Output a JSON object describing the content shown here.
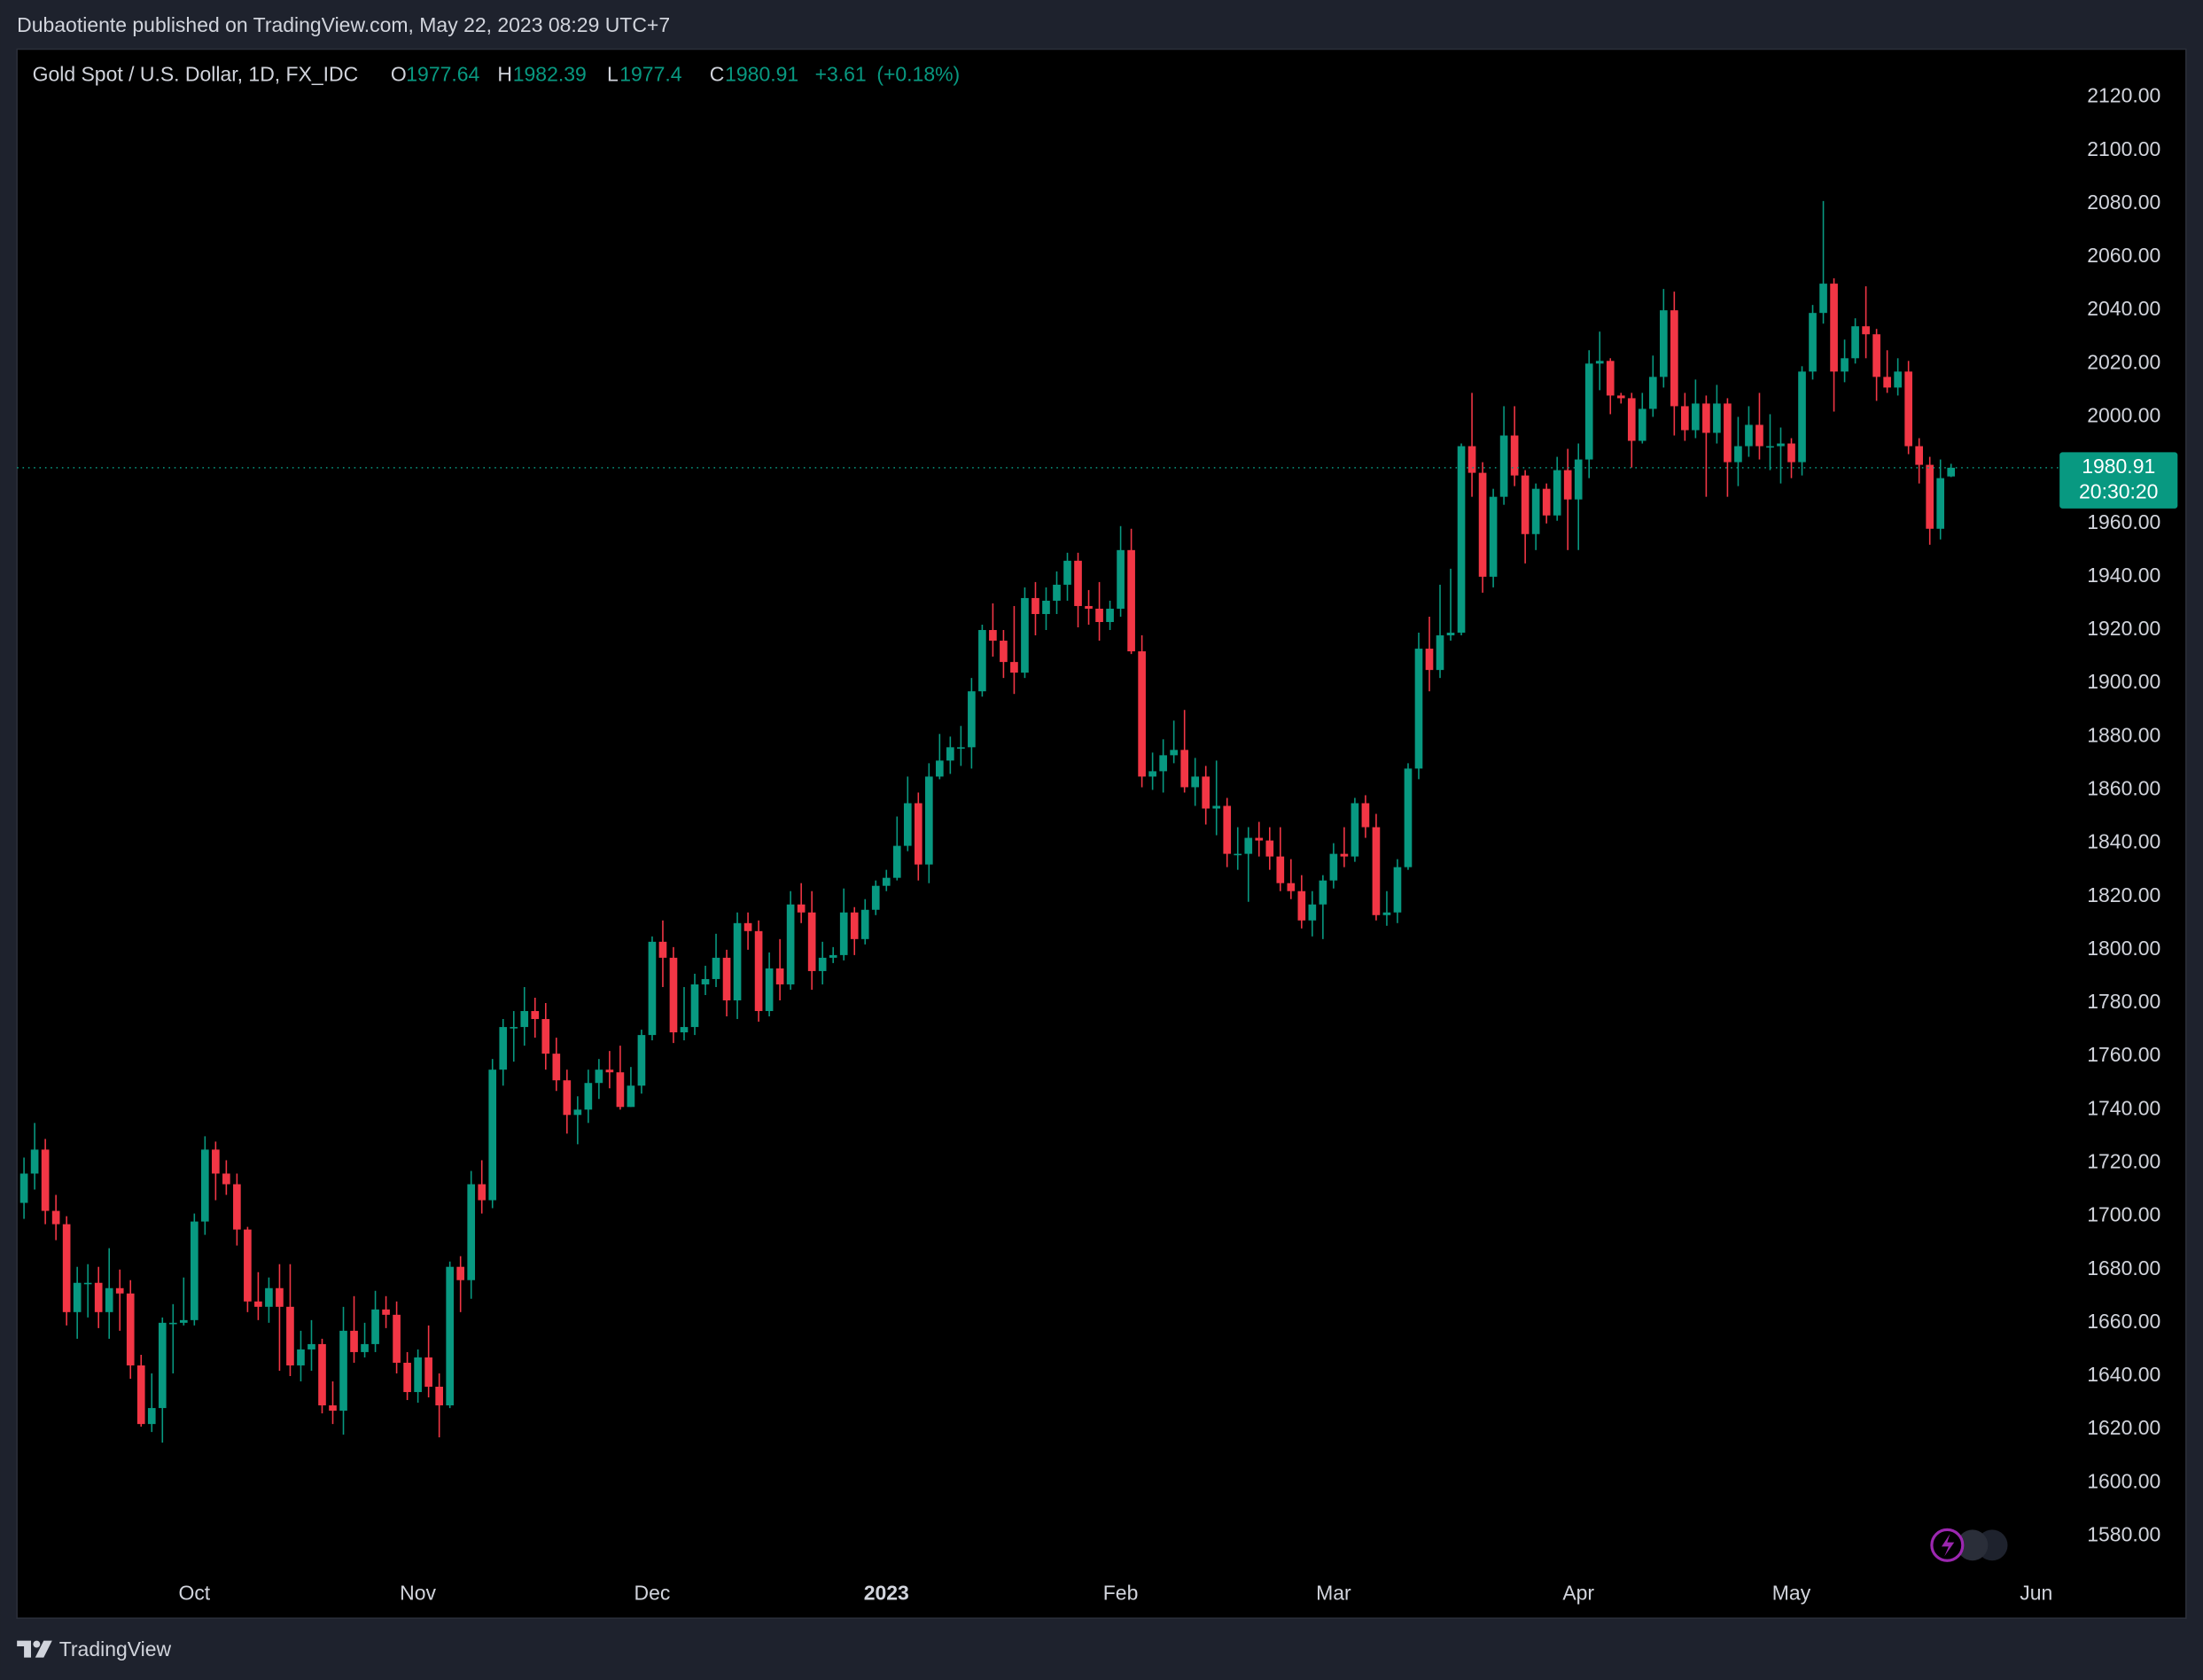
{
  "header": {
    "published": "Dubaotiente published on TradingView.com, May 22, 2023 08:29 UTC+7"
  },
  "footer": {
    "brand": "TradingView"
  },
  "chart_data": {
    "type": "candlestick",
    "title": "Gold Spot / U.S. Dollar, 1D, FX_IDC",
    "ohlc_prefixes": [
      "O",
      "H",
      "L",
      "C"
    ],
    "change": "+3.61",
    "change_pct": "(+0.18%)",
    "countdown": "20:30:20",
    "up_color": "#089981",
    "down_color": "#f23645",
    "grid": false,
    "xlim": [
      -0.66,
      190.4
    ],
    "xticks": [
      {
        "value": 16,
        "label": "Oct"
      },
      {
        "value": 37,
        "label": "Nov"
      },
      {
        "value": 59,
        "label": "Dec"
      },
      {
        "value": 81,
        "label": "2023"
      },
      {
        "value": 103,
        "label": "Feb"
      },
      {
        "value": 123,
        "label": "Mar"
      },
      {
        "value": 146,
        "label": "Apr"
      },
      {
        "value": 166,
        "label": "May"
      },
      {
        "value": 189,
        "label": "Jun"
      }
    ],
    "ylim": [
      1566,
      2138
    ],
    "yticks": [
      {
        "value": 1580,
        "label": "1580.00"
      },
      {
        "value": 1600,
        "label": "1600.00"
      },
      {
        "value": 1620,
        "label": "1620.00"
      },
      {
        "value": 1640,
        "label": "1640.00"
      },
      {
        "value": 1660,
        "label": "1660.00"
      },
      {
        "value": 1680,
        "label": "1680.00"
      },
      {
        "value": 1700,
        "label": "1700.00"
      },
      {
        "value": 1720,
        "label": "1720.00"
      },
      {
        "value": 1740,
        "label": "1740.00"
      },
      {
        "value": 1760,
        "label": "1760.00"
      },
      {
        "value": 1780,
        "label": "1780.00"
      },
      {
        "value": 1800,
        "label": "1800.00"
      },
      {
        "value": 1820,
        "label": "1820.00"
      },
      {
        "value": 1840,
        "label": "1840.00"
      },
      {
        "value": 1860,
        "label": "1860.00"
      },
      {
        "value": 1880,
        "label": "1880.00"
      },
      {
        "value": 1900,
        "label": "1900.00"
      },
      {
        "value": 1920,
        "label": "1920.00"
      },
      {
        "value": 1940,
        "label": "1940.00"
      },
      {
        "value": 1960,
        "label": "1960.00"
      },
      {
        "value": 1980,
        "label": "1980.00"
      },
      {
        "value": 2000,
        "label": "2000.00"
      },
      {
        "value": 2020,
        "label": "2020.00"
      },
      {
        "value": 2040,
        "label": "2040.00"
      },
      {
        "value": 2060,
        "label": "2060.00"
      },
      {
        "value": 2080,
        "label": "2080.00"
      },
      {
        "value": 2100,
        "label": "2100.00"
      },
      {
        "value": 2120,
        "label": "2120.00"
      }
    ],
    "open": [
      1705,
      1716,
      1725,
      1702,
      1697,
      1664,
      1675,
      1675,
      1664,
      1673,
      1671,
      1644,
      1622,
      1628,
      1660,
      1660,
      1661,
      1698,
      1725,
      1716,
      1712,
      1695,
      1668,
      1666,
      1673,
      1666,
      1644,
      1650,
      1652,
      1629,
      1627,
      1657,
      1649,
      1652,
      1665,
      1663,
      1645,
      1634,
      1647,
      1636,
      1629,
      1681,
      1676,
      1712,
      1706,
      1755,
      1771,
      1771,
      1777,
      1774,
      1761,
      1751,
      1738,
      1740,
      1750,
      1755,
      1754,
      1741,
      1749,
      1768,
      1803,
      1797,
      1769,
      1771,
      1787,
      1789,
      1797,
      1781,
      1810,
      1807,
      1777,
      1793,
      1787,
      1817,
      1814,
      1792,
      1797,
      1798,
      1814,
      1804,
      1815,
      1824,
      1827,
      1839,
      1855,
      1832,
      1865,
      1871,
      1876,
      1876,
      1897,
      1920,
      1916,
      1908,
      1904,
      1932,
      1926,
      1931,
      1937,
      1946,
      1929,
      1928,
      1923,
      1928,
      1950,
      1912,
      1865,
      1867,
      1873,
      1875,
      1861,
      1865,
      1853,
      1854,
      1836,
      1836,
      1842,
      1841,
      1835,
      1825,
      1822,
      1811,
      1817,
      1826,
      1836,
      1835,
      1855,
      1846,
      1813,
      1814,
      1831,
      1868,
      1913,
      1905,
      1918,
      1919,
      1989,
      1979,
      1940,
      1970,
      1993,
      1978,
      1956,
      1973,
      1963,
      1980,
      1969,
      1984,
      2020,
      2021,
      2008,
      2007,
      1991,
      2003,
      2015,
      2040,
      2004,
      1995,
      2005,
      1994,
      2005,
      1983,
      1989,
      1997,
      1989,
      1989,
      1990,
      1983,
      2017,
      2039,
      2050,
      2017,
      2022,
      2034,
      2031,
      2015,
      2011,
      2017,
      1989,
      1982,
      1958,
      1977.64
    ],
    "high": [
      1722,
      1735,
      1729,
      1708,
      1700,
      1681,
      1682,
      1681,
      1688,
      1680,
      1676,
      1648,
      1641,
      1662,
      1667,
      1677,
      1701,
      1730,
      1728,
      1721,
      1716,
      1696,
      1679,
      1677,
      1682,
      1682,
      1657,
      1661,
      1654,
      1638,
      1666,
      1670,
      1660,
      1672,
      1670,
      1668,
      1649,
      1650,
      1659,
      1641,
      1683,
      1685,
      1717,
      1721,
      1759,
      1774,
      1777,
      1786,
      1782,
      1780,
      1767,
      1755,
      1745,
      1755,
      1759,
      1762,
      1764,
      1756,
      1770,
      1805,
      1811,
      1801,
      1786,
      1791,
      1794,
      1806,
      1800,
      1814,
      1814,
      1811,
      1799,
      1804,
      1822,
      1825,
      1822,
      1803,
      1801,
      1823,
      1816,
      1819,
      1826,
      1830,
      1850,
      1865,
      1859,
      1870,
      1881,
      1880,
      1884,
      1902,
      1922,
      1930,
      1920,
      1929,
      1936,
      1938,
      1936,
      1942,
      1949,
      1949,
      1935,
      1938,
      1931,
      1959,
      1958,
      1918,
      1874,
      1879,
      1886,
      1890,
      1872,
      1869,
      1871,
      1857,
      1846,
      1846,
      1848,
      1846,
      1846,
      1834,
      1828,
      1822,
      1828,
      1840,
      1846,
      1857,
      1858,
      1851,
      1822,
      1834,
      1870,
      1919,
      1925,
      1937,
      1943,
      1990,
      2009,
      1983,
      1973,
      2004,
      2004,
      1980,
      1975,
      1975,
      1985,
      1988,
      1990,
      2025,
      2032,
      2022,
      2009,
      2009,
      2009,
      2023,
      2048,
      2047,
      2009,
      2014,
      2008,
      2012,
      2007,
      2000,
      2004,
      2009,
      2001,
      1996,
      1992,
      2019,
      2042,
      2081,
      2052,
      2029,
      2037,
      2049,
      2033,
      2025,
      2022,
      2021,
      1992,
      1985,
      1984,
      1982.39
    ],
    "low": [
      1699,
      1710,
      1697,
      1691,
      1659,
      1654,
      1662,
      1658,
      1654,
      1657,
      1639,
      1621,
      1619,
      1615,
      1641,
      1659,
      1659,
      1693,
      1706,
      1708,
      1689,
      1664,
      1661,
      1660,
      1642,
      1640,
      1638,
      1642,
      1626,
      1622,
      1618,
      1645,
      1647,
      1649,
      1658,
      1641,
      1631,
      1630,
      1632,
      1617,
      1628,
      1664,
      1669,
      1701,
      1703,
      1749,
      1758,
      1764,
      1767,
      1755,
      1747,
      1731,
      1727,
      1735,
      1744,
      1748,
      1740,
      1741,
      1746,
      1766,
      1786,
      1765,
      1766,
      1768,
      1783,
      1786,
      1775,
      1774,
      1800,
      1773,
      1775,
      1781,
      1785,
      1810,
      1785,
      1787,
      1795,
      1796,
      1798,
      1802,
      1813,
      1822,
      1826,
      1837,
      1826,
      1825,
      1864,
      1866,
      1869,
      1868,
      1895,
      1910,
      1902,
      1896,
      1902,
      1918,
      1920,
      1926,
      1931,
      1921,
      1922,
      1916,
      1920,
      1925,
      1911,
      1861,
      1860,
      1859,
      1870,
      1859,
      1854,
      1847,
      1843,
      1831,
      1830,
      1818,
      1835,
      1830,
      1822,
      1819,
      1808,
      1805,
      1804,
      1823,
      1831,
      1833,
      1842,
      1811,
      1809,
      1810,
      1830,
      1864,
      1897,
      1902,
      1916,
      1918,
      1970,
      1934,
      1936,
      1967,
      1974,
      1945,
      1950,
      1960,
      1961,
      1950,
      1950,
      1977,
      2010,
      2001,
      2005,
      1981,
      1990,
      2000,
      2011,
      1993,
      1991,
      1992,
      1970,
      1990,
      1970,
      1974,
      1985,
      1984,
      1980,
      1975,
      1977,
      1978,
      2014,
      2035,
      2002,
      2013,
      2020,
      2022,
      2006,
      2009,
      2008,
      1986,
      1975,
      1952,
      1954,
      1977.4
    ],
    "close": [
      1716,
      1725,
      1702,
      1697,
      1664,
      1675,
      1675,
      1664,
      1673,
      1671,
      1644,
      1622,
      1628,
      1660,
      1660,
      1661,
      1698,
      1725,
      1716,
      1712,
      1695,
      1668,
      1666,
      1673,
      1666,
      1644,
      1650,
      1652,
      1629,
      1627,
      1657,
      1649,
      1652,
      1665,
      1663,
      1645,
      1634,
      1647,
      1636,
      1629,
      1681,
      1676,
      1712,
      1706,
      1755,
      1771,
      1771,
      1777,
      1774,
      1761,
      1751,
      1738,
      1740,
      1750,
      1755,
      1754,
      1741,
      1749,
      1768,
      1803,
      1797,
      1769,
      1771,
      1787,
      1789,
      1797,
      1781,
      1810,
      1807,
      1777,
      1793,
      1787,
      1817,
      1814,
      1792,
      1797,
      1798,
      1814,
      1804,
      1815,
      1824,
      1827,
      1839,
      1855,
      1832,
      1865,
      1871,
      1876,
      1876,
      1897,
      1920,
      1916,
      1908,
      1904,
      1932,
      1926,
      1931,
      1937,
      1946,
      1929,
      1928,
      1923,
      1928,
      1950,
      1912,
      1865,
      1867,
      1873,
      1875,
      1861,
      1865,
      1853,
      1854,
      1836,
      1836,
      1842,
      1841,
      1835,
      1825,
      1822,
      1811,
      1817,
      1826,
      1836,
      1835,
      1855,
      1846,
      1813,
      1814,
      1831,
      1868,
      1913,
      1905,
      1918,
      1919,
      1989,
      1979,
      1940,
      1970,
      1993,
      1978,
      1956,
      1973,
      1963,
      1980,
      1969,
      1984,
      2020,
      2021,
      2008,
      2007,
      1991,
      2003,
      2015,
      2040,
      2004,
      1995,
      2005,
      1994,
      2005,
      1983,
      1989,
      1997,
      1989,
      1989,
      1990,
      1983,
      2017,
      2039,
      2050,
      2017,
      2022,
      2034,
      2031,
      2015,
      2011,
      2017,
      1989,
      1982,
      1958,
      1977,
      1980.91
    ]
  }
}
